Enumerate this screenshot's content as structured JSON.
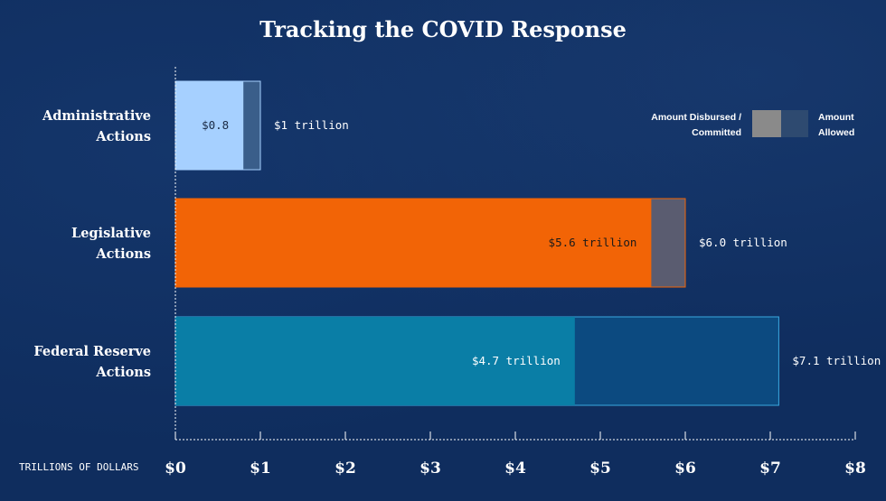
{
  "title": "Tracking the COVID Response",
  "legend": {
    "disbursed_line1": "Amount Disbursed /",
    "disbursed_line2": "Committed",
    "allowed_line1": "Amount",
    "allowed_line2": "Allowed"
  },
  "colors": {
    "background": "#0f2d5e",
    "administrative_disbursed": "#a6d0ff",
    "administrative_allowed": "#3a5e8a",
    "legislative_disbursed": "#f26406",
    "legislative_allowed": "#5a5c70",
    "federal_disbursed": "#0a7ea6",
    "federal_allowed": "#0c4a80",
    "legend_disbursed": "#8a8a8a",
    "legend_allowed": "#2e4a70"
  },
  "chart_data": {
    "type": "bar",
    "orientation": "horizontal",
    "title": "Tracking the COVID Response",
    "xlabel": "TRILLIONS OF DOLLARS",
    "ylabel": "",
    "xlim": [
      0,
      8
    ],
    "x_ticks": [
      "$0",
      "$1",
      "$2",
      "$3",
      "$4",
      "$5",
      "$6",
      "$7",
      "$8"
    ],
    "categories": [
      {
        "line1": "Administrative",
        "line2": "Actions"
      },
      {
        "line1": "Legislative",
        "line2": "Actions"
      },
      {
        "line1": "Federal Reserve",
        "line2": "Actions"
      }
    ],
    "series": [
      {
        "name": "Amount Disbursed / Committed",
        "values": [
          0.8,
          5.6,
          4.7
        ],
        "labels": [
          "$0.8",
          "$5.6 trillion",
          "$4.7 trillion"
        ]
      },
      {
        "name": "Amount Allowed",
        "values": [
          1.0,
          6.0,
          7.1
        ],
        "labels": [
          "$1 trillion",
          "$6.0 trillion",
          "$7.1 trillion"
        ]
      }
    ],
    "grid": false,
    "legend_position": "top-right"
  }
}
